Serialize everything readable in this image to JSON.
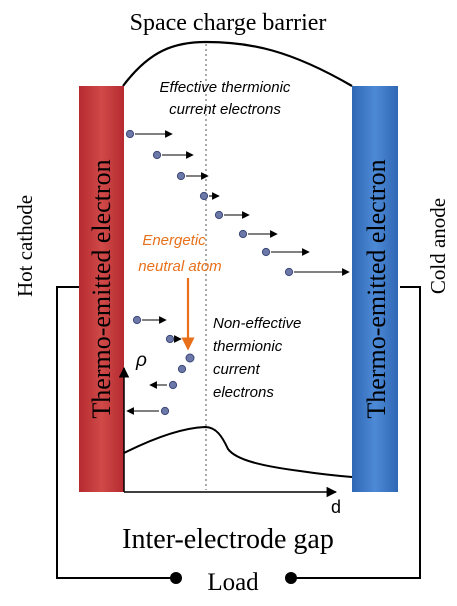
{
  "labels": {
    "title": "Space charge barrier",
    "effective_line1": "Effective thermionic",
    "effective_line2": "current electrons",
    "noneff_line1": "Non-effective",
    "noneff_line2": "thermionic",
    "noneff_line3": "current",
    "noneff_line4": "electrons",
    "neutral_line1": "Energetic",
    "neutral_line2": "neutral atom",
    "left_electrode": "Thermo-emitted electron",
    "right_electrode": "Thermo-emitted electron",
    "hot_cathode": "Hot cathode",
    "cold_anode": "Cold anode",
    "gap": "Inter-electrode gap",
    "load": "Load",
    "rho": "ρ",
    "d": "d"
  },
  "colors": {
    "cathode": "#c0393b",
    "anode": "#3b78c4",
    "neutral": "#e8701a",
    "electron": "#6b78a8",
    "line": "#000000"
  }
}
